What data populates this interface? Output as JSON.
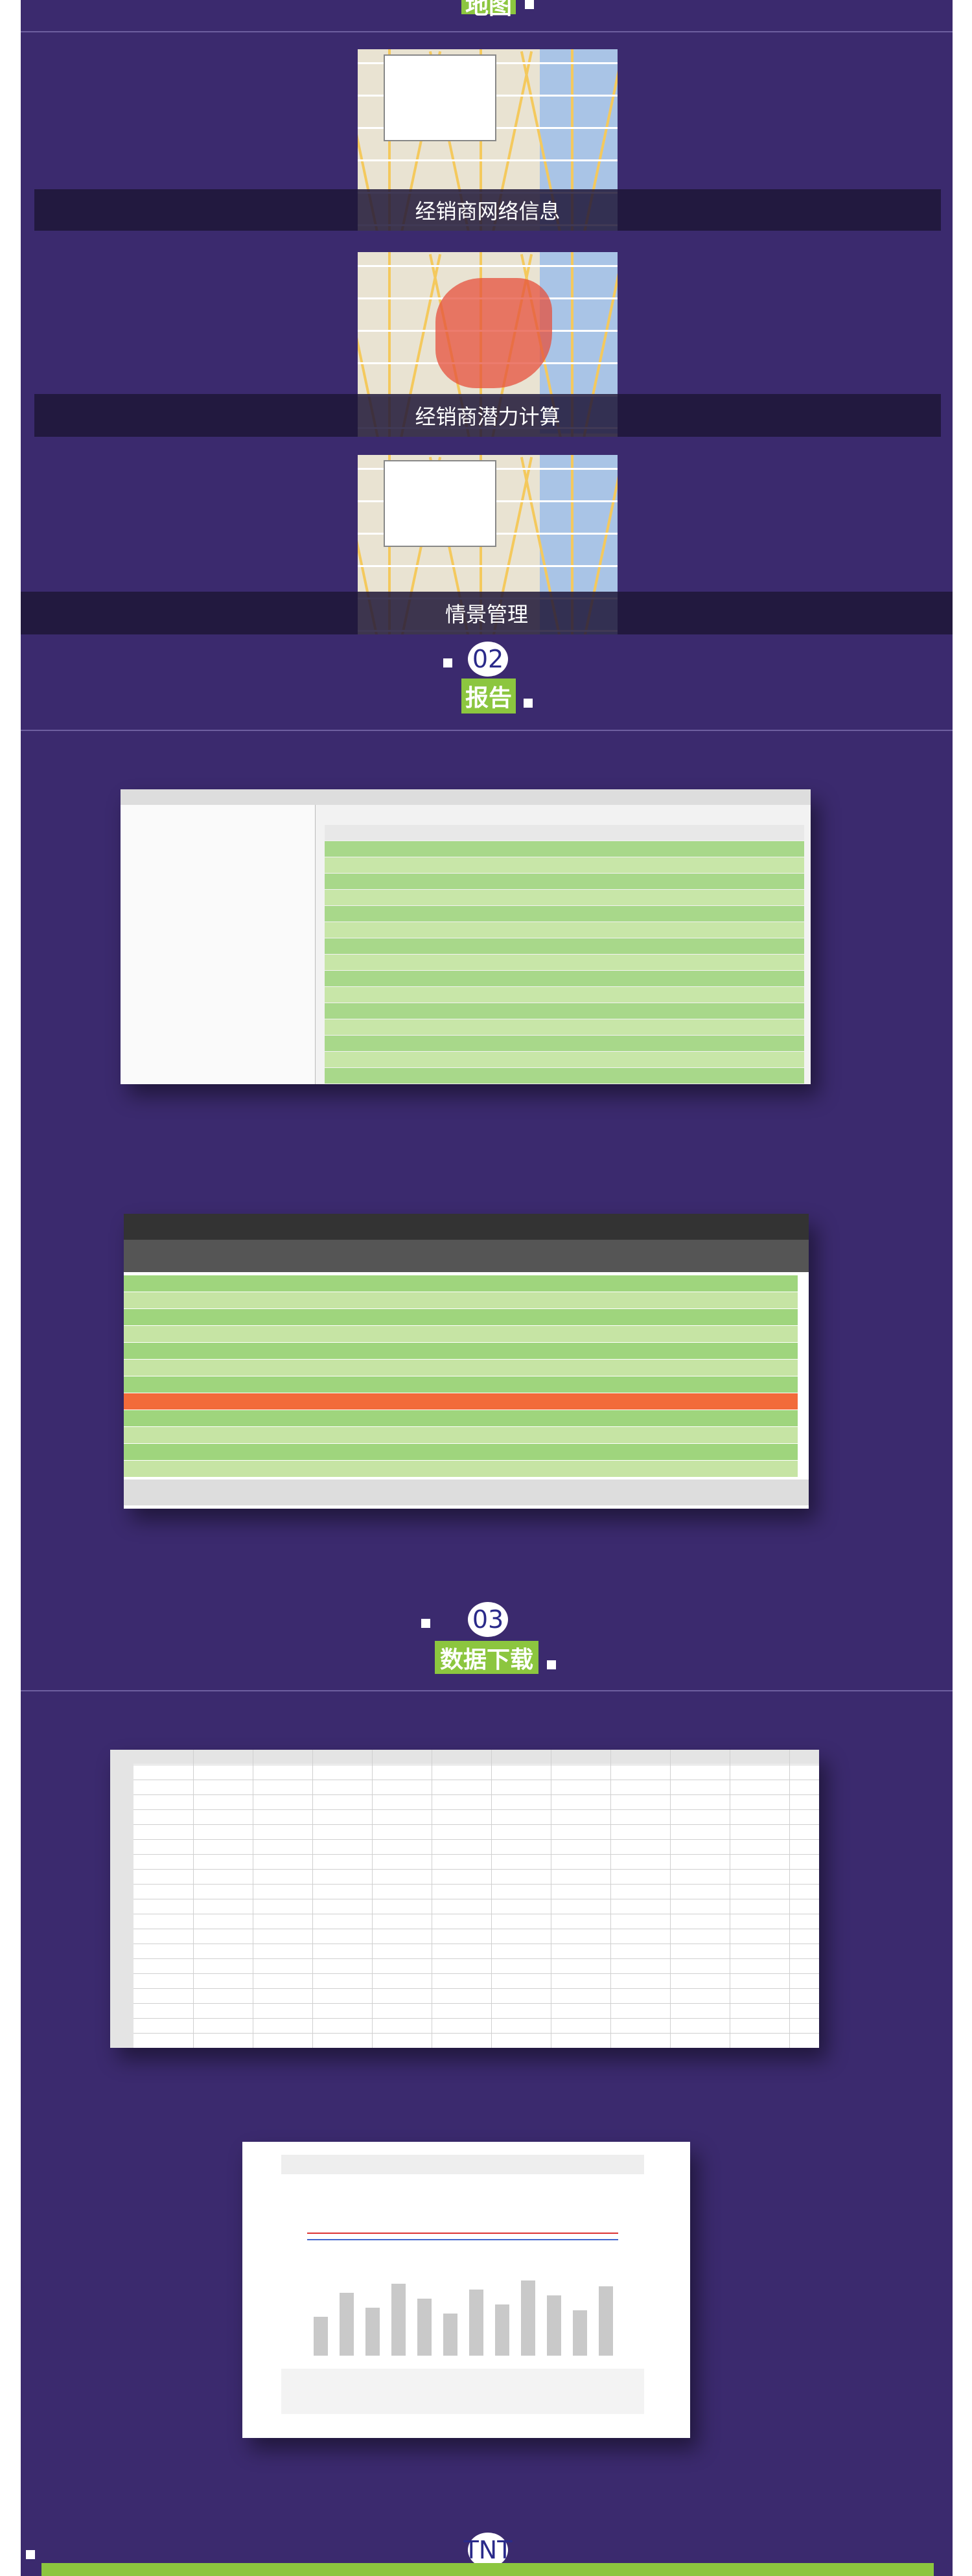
{
  "map": {
    "heading": "地图",
    "items": [
      "经销商网络信息",
      "经销商潜力计算",
      "情景管理"
    ]
  },
  "report": {
    "number": "02",
    "heading": "报告"
  },
  "download": {
    "number": "03",
    "heading": "数据下载"
  },
  "features": {
    "number": "TNT"
  }
}
